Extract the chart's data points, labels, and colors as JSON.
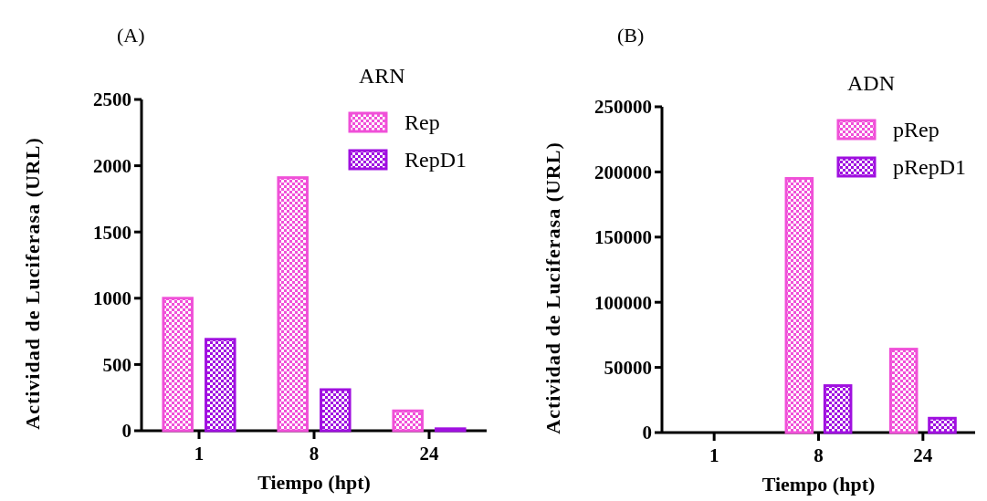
{
  "chart_data": [
    {
      "type": "bar",
      "title": "(A)",
      "legend_title": "ARN",
      "xlabel": "Tiempo (hpt)",
      "ylabel": "Actividad de Luciferasa (URL)",
      "categories": [
        "1",
        "8",
        "24"
      ],
      "series": [
        {
          "name": "Rep",
          "color": "#f050d8",
          "values": [
            1000,
            1910,
            150
          ]
        },
        {
          "name": "RepD1",
          "color": "#a010e0",
          "values": [
            690,
            310,
            15
          ]
        }
      ],
      "ylim": [
        0,
        2500
      ],
      "yticks": [
        0,
        500,
        1000,
        1500,
        2000,
        2500
      ],
      "grid": false,
      "legend": "top right"
    },
    {
      "type": "bar",
      "title": "(B)",
      "legend_title": "ADN",
      "xlabel": "Tiempo (hpt)",
      "ylabel": "Actividad de Luciferasa (URL)",
      "categories": [
        "1",
        "8",
        "24"
      ],
      "series": [
        {
          "name": "pRep",
          "color": "#f050d8",
          "values": [
            0,
            195000,
            64000
          ]
        },
        {
          "name": "pRepD1",
          "color": "#a010e0",
          "values": [
            0,
            36000,
            11000
          ]
        }
      ],
      "ylim": [
        0,
        250000
      ],
      "yticks": [
        0,
        50000,
        100000,
        150000,
        200000,
        250000
      ],
      "grid": false,
      "legend": "top right"
    }
  ]
}
